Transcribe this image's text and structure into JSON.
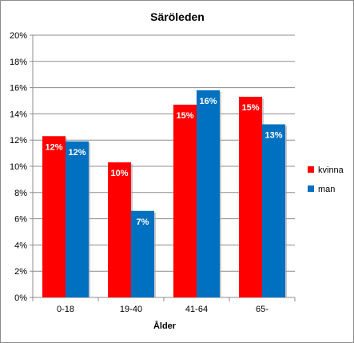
{
  "chart_data": {
    "type": "bar",
    "title": "Säröleden",
    "xlabel": "Ålder",
    "ylabel": "",
    "categories": [
      "0-18",
      "19-40",
      "41-64",
      "65-"
    ],
    "series": [
      {
        "name": "kvinna",
        "color": "#ff0000",
        "values": [
          0.123,
          0.103,
          0.147,
          0.153
        ],
        "labels": [
          "12%",
          "10%",
          "15%",
          "15%"
        ]
      },
      {
        "name": "man",
        "color": "#0070c0",
        "values": [
          0.119,
          0.066,
          0.158,
          0.132
        ],
        "labels": [
          "12%",
          "7%",
          "16%",
          "13%"
        ]
      }
    ],
    "ylim": [
      0,
      0.2
    ],
    "yticks": [
      0,
      0.02,
      0.04,
      0.06,
      0.08,
      0.1,
      0.12,
      0.14,
      0.16,
      0.18,
      0.2
    ],
    "ytick_labels": [
      "0%",
      "2%",
      "4%",
      "6%",
      "8%",
      "10%",
      "12%",
      "14%",
      "16%",
      "18%",
      "20%"
    ],
    "grid": true,
    "legend": "right"
  }
}
